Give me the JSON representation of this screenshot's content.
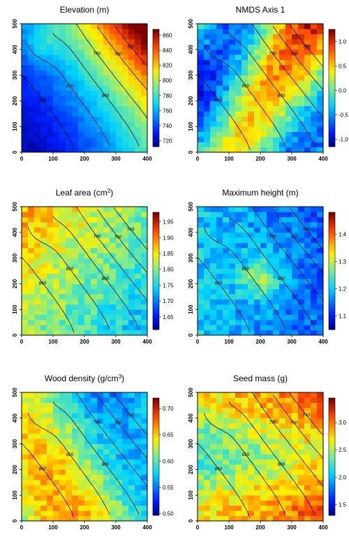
{
  "figure": {
    "description_free": true
  },
  "chart_data": [
    {
      "type": "heatmap",
      "title": "Elevation (m)",
      "xlim": [
        0,
        400
      ],
      "ylim": [
        0,
        500
      ],
      "x_ticks": [
        0,
        100,
        200,
        300,
        400
      ],
      "y_ticks": [
        0,
        100,
        200,
        300,
        400,
        500
      ],
      "colorbar": {
        "min": 712,
        "max": 868,
        "ticks": [
          720,
          740,
          760,
          780,
          800,
          820,
          840,
          860
        ]
      },
      "contour_labels": [
        "780",
        "800",
        "820",
        "840",
        "760",
        "780",
        "740",
        "720"
      ],
      "grid_cols": 20,
      "grid_rows": 25,
      "field": {
        "base": 770,
        "kind": "elevation",
        "noise": 4,
        "seed": 11
      }
    },
    {
      "type": "heatmap",
      "title": "NMDS Axis 1",
      "xlim": [
        0,
        400
      ],
      "ylim": [
        0,
        500
      ],
      "x_ticks": [
        0,
        100,
        200,
        300,
        400
      ],
      "y_ticks": [
        0,
        100,
        200,
        300,
        400,
        500
      ],
      "colorbar": {
        "min": -1.15,
        "max": 1.25,
        "ticks": [
          -1.0,
          -0.5,
          0.0,
          0.5,
          1.0
        ],
        "tick_labels": [
          "-1.0",
          "-0.5",
          "0.0",
          "0.5",
          "1.0"
        ]
      },
      "contour_labels": [
        "780",
        "840",
        "820",
        "800",
        "760",
        "780",
        "740",
        "720"
      ],
      "grid_cols": 20,
      "grid_rows": 25,
      "field": {
        "kind": "nmds",
        "noise": 0.35,
        "seed": 23
      }
    },
    {
      "type": "heatmap",
      "title_main": "Leaf area (cm",
      "title_sup": "2",
      "title_end": ")",
      "xlim": [
        0,
        400
      ],
      "ylim": [
        0,
        500
      ],
      "x_ticks": [
        0,
        100,
        200,
        300,
        400
      ],
      "y_ticks": [
        0,
        100,
        200,
        300,
        400,
        500
      ],
      "colorbar": {
        "min": 1.61,
        "max": 1.98,
        "ticks": [
          1.65,
          1.7,
          1.75,
          1.8,
          1.85,
          1.9,
          1.95
        ],
        "tick_labels": [
          "1.65",
          "1.70",
          "1.75",
          "1.80",
          "1.85",
          "1.90",
          "1.95"
        ]
      },
      "contour_labels": [
        "780",
        "840",
        "820",
        "800",
        "780",
        "760",
        "740",
        "720"
      ],
      "grid_cols": 20,
      "grid_rows": 25,
      "field": {
        "kind": "leaf",
        "noise": 0.06,
        "seed": 37
      }
    },
    {
      "type": "heatmap",
      "title": "Maximum height (m)",
      "xlim": [
        0,
        400
      ],
      "ylim": [
        0,
        500
      ],
      "x_ticks": [
        0,
        100,
        200,
        300,
        400
      ],
      "y_ticks": [
        0,
        100,
        200,
        300,
        400,
        500
      ],
      "colorbar": {
        "min": 1.05,
        "max": 1.48,
        "ticks": [
          1.1,
          1.2,
          1.3,
          1.4
        ],
        "tick_labels": [
          "1.1",
          "1.2",
          "1.3",
          "1.4"
        ]
      },
      "contour_labels": [
        "780",
        "840",
        "820",
        "800",
        "780",
        "760",
        "740",
        "720"
      ],
      "grid_cols": 20,
      "grid_rows": 25,
      "field": {
        "kind": "height",
        "noise": 0.07,
        "seed": 41
      }
    },
    {
      "type": "heatmap",
      "title_main": "Wood density (g/cm",
      "title_sup": "3",
      "title_end": ")",
      "xlim": [
        0,
        400
      ],
      "ylim": [
        0,
        500
      ],
      "x_ticks": [
        0,
        100,
        200,
        300,
        400
      ],
      "y_ticks": [
        0,
        100,
        200,
        300,
        400,
        500
      ],
      "colorbar": {
        "min": 0.497,
        "max": 0.72,
        "ticks": [
          0.5,
          0.55,
          0.6,
          0.65,
          0.7
        ],
        "tick_labels": [
          "0.50",
          "0.55",
          "0.60",
          "0.65",
          "0.70"
        ]
      },
      "contour_labels": [
        "780",
        "840",
        "820",
        "800",
        "780",
        "760",
        "740",
        "720"
      ],
      "grid_cols": 20,
      "grid_rows": 25,
      "field": {
        "kind": "wood",
        "noise": 0.03,
        "seed": 53
      }
    },
    {
      "type": "heatmap",
      "title": "Seed mass (g)",
      "xlim": [
        0,
        400
      ],
      "ylim": [
        0,
        500
      ],
      "x_ticks": [
        0,
        100,
        200,
        300,
        400
      ],
      "y_ticks": [
        0,
        100,
        200,
        300,
        400,
        500
      ],
      "colorbar": {
        "min": 1.3,
        "max": 3.45,
        "ticks": [
          1.5,
          2.0,
          2.5,
          3.0
        ],
        "tick_labels": [
          "1.5",
          "2.0",
          "2.5",
          "3.0"
        ]
      },
      "contour_labels": [
        "780",
        "840",
        "820",
        "800",
        "780",
        "760",
        "740",
        "720"
      ],
      "grid_cols": 20,
      "grid_rows": 25,
      "field": {
        "kind": "seed",
        "noise": 0.35,
        "seed": 67
      }
    }
  ]
}
